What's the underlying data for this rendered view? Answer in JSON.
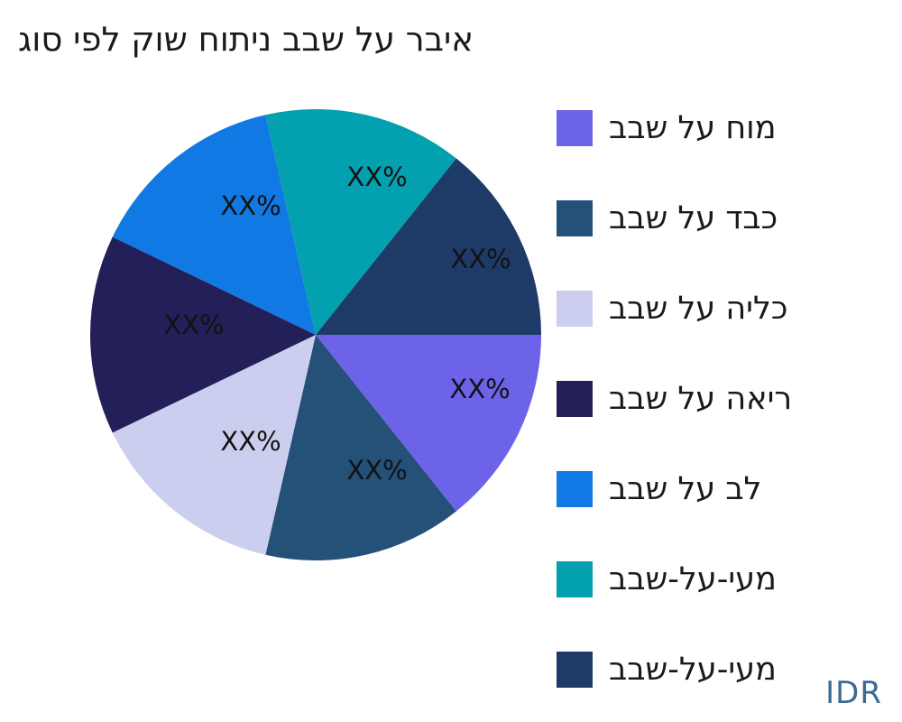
{
  "chart_data": {
    "type": "pie",
    "title": "איבר על שבב ניתוח שוק לפי סוג",
    "categories": [
      "מוח על שבב",
      "כבד על שבב",
      "כליה על שבב",
      "ריאה על שבב",
      "לב על שבב",
      "מעי-על-שבב",
      "מעי-על-שבב"
    ],
    "values": [
      14.286,
      14.286,
      14.286,
      14.286,
      14.286,
      14.286,
      14.286
    ],
    "slice_labels": [
      "XX%",
      "XX%",
      "XX%",
      "XX%",
      "XX%",
      "XX%",
      "XX%"
    ],
    "colors": [
      "#6D63E9",
      "#255078",
      "#CBCEEE",
      "#231F58",
      "#1179E3",
      "#03A0B0",
      "#1E3A66"
    ],
    "legend_position": "right",
    "start_angle_clockwise_from_top_deg": 90,
    "note": "Numeric percentages are redacted in the source: every slice label reads XX% and the seven slices are visually equal (one seventh each)."
  },
  "watermark": {
    "text": "IDR",
    "color": "#3A6B96"
  }
}
